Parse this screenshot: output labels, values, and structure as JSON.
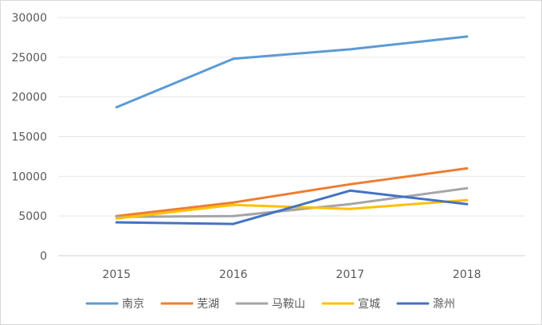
{
  "chart_data": {
    "type": "line",
    "title": "",
    "xlabel": "",
    "ylabel": "",
    "categories": [
      "2015",
      "2016",
      "2017",
      "2018"
    ],
    "ylim": [
      0,
      30000
    ],
    "yticks": [
      0,
      5000,
      10000,
      15000,
      20000,
      25000,
      30000
    ],
    "grid": true,
    "legend_position": "bottom",
    "series": [
      {
        "name": "南京",
        "color": "#5b9bd5",
        "values": [
          18700,
          24800,
          26000,
          27600
        ]
      },
      {
        "name": "芜湖",
        "color": "#ed7d31",
        "values": [
          5000,
          6700,
          9000,
          11000
        ]
      },
      {
        "name": "马鞍山",
        "color": "#a5a5a5",
        "values": [
          4900,
          5000,
          6500,
          8500
        ]
      },
      {
        "name": "宣城",
        "color": "#ffc000",
        "values": [
          4700,
          6400,
          5900,
          7000
        ]
      },
      {
        "name": "滁州",
        "color": "#4472c4",
        "values": [
          4200,
          4000,
          8200,
          6500
        ]
      }
    ]
  }
}
